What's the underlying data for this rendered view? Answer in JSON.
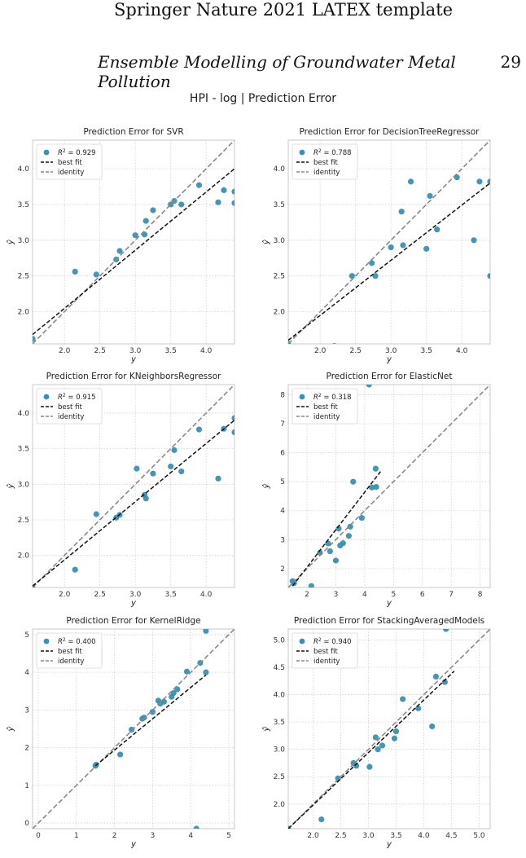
{
  "header": {
    "running_title": "Springer Nature 2021 LATEX template",
    "paper_title": "Ensemble Modelling of Groundwater Metal Pollution",
    "page_number": "29"
  },
  "figure": {
    "suptitle": "HPI - log | Prediction Error",
    "legend": {
      "best_fit": "best fit",
      "identity": "identity"
    },
    "xlabel": "y",
    "ylabel": "ŷ"
  },
  "colors": {
    "points": "#3c8fb0",
    "best_fit": "#111111",
    "identity": "#888888",
    "grid": "#cfcfcf"
  },
  "chart_data": [
    {
      "type": "scatter",
      "title": "Prediction Error for SVR",
      "r2": "0.929",
      "xlim": [
        1.55,
        4.4
      ],
      "ylim": [
        1.55,
        4.4
      ],
      "xticks": [
        2.0,
        2.5,
        3.0,
        3.5,
        4.0
      ],
      "yticks": [
        2.0,
        2.5,
        3.0,
        3.5,
        4.0
      ],
      "tick_decimals": 1,
      "best_fit": [
        [
          1.55,
          1.68
        ],
        [
          4.4,
          4.0
        ]
      ],
      "points": [
        [
          1.55,
          1.62
        ],
        [
          2.15,
          2.56
        ],
        [
          2.45,
          2.52
        ],
        [
          2.73,
          2.73
        ],
        [
          2.78,
          2.85
        ],
        [
          3.0,
          3.07
        ],
        [
          3.13,
          3.08
        ],
        [
          3.15,
          3.27
        ],
        [
          3.25,
          3.42
        ],
        [
          3.5,
          3.5
        ],
        [
          3.55,
          3.55
        ],
        [
          3.65,
          3.5
        ],
        [
          3.9,
          3.77
        ],
        [
          4.17,
          3.53
        ],
        [
          4.25,
          3.7
        ],
        [
          4.4,
          3.52
        ],
        [
          4.4,
          3.68
        ]
      ]
    },
    {
      "type": "scatter",
      "title": "Prediction Error for DecisionTreeRegressor",
      "r2": "0.788",
      "xlim": [
        1.55,
        4.4
      ],
      "ylim": [
        1.55,
        4.4
      ],
      "xticks": [
        2.0,
        2.5,
        3.0,
        3.5,
        4.0
      ],
      "yticks": [
        2.0,
        2.5,
        3.0,
        3.5,
        4.0
      ],
      "tick_decimals": 1,
      "best_fit": [
        [
          1.55,
          1.6
        ],
        [
          4.4,
          3.8
        ]
      ],
      "points": [
        [
          1.55,
          1.55
        ],
        [
          2.2,
          1.52
        ],
        [
          2.45,
          2.5
        ],
        [
          2.73,
          2.68
        ],
        [
          2.78,
          2.5
        ],
        [
          3.0,
          2.9
        ],
        [
          3.15,
          3.4
        ],
        [
          3.17,
          2.93
        ],
        [
          3.28,
          3.82
        ],
        [
          3.5,
          2.88
        ],
        [
          3.55,
          3.62
        ],
        [
          3.65,
          3.15
        ],
        [
          3.93,
          3.88
        ],
        [
          4.17,
          3.0
        ],
        [
          4.25,
          3.82
        ],
        [
          4.4,
          3.82
        ],
        [
          4.4,
          2.5
        ]
      ]
    },
    {
      "type": "scatter",
      "title": "Prediction Error for KNeighborsRegressor",
      "r2": "0.915",
      "xlim": [
        1.55,
        4.4
      ],
      "ylim": [
        1.55,
        4.4
      ],
      "xticks": [
        2.0,
        2.5,
        3.0,
        3.5,
        4.0
      ],
      "yticks": [
        2.0,
        2.5,
        3.0,
        3.5,
        4.0
      ],
      "tick_decimals": 1,
      "best_fit": [
        [
          1.55,
          1.57
        ],
        [
          4.4,
          3.9
        ]
      ],
      "points": [
        [
          1.55,
          1.55
        ],
        [
          2.15,
          1.8
        ],
        [
          2.45,
          2.58
        ],
        [
          2.73,
          2.53
        ],
        [
          2.78,
          2.57
        ],
        [
          3.02,
          3.22
        ],
        [
          3.13,
          2.85
        ],
        [
          3.15,
          2.8
        ],
        [
          3.25,
          3.15
        ],
        [
          3.5,
          3.25
        ],
        [
          3.55,
          3.48
        ],
        [
          3.65,
          3.18
        ],
        [
          3.9,
          3.77
        ],
        [
          4.17,
          3.08
        ],
        [
          4.25,
          3.78
        ],
        [
          4.4,
          3.73
        ],
        [
          4.4,
          3.93
        ]
      ]
    },
    {
      "type": "scatter",
      "title": "Prediction Error for ElasticNet",
      "r2": "0.318",
      "xlim": [
        1.35,
        8.35
      ],
      "ylim": [
        1.35,
        8.35
      ],
      "xticks": [
        2,
        3,
        4,
        5,
        6,
        7,
        8
      ],
      "yticks": [
        2,
        3,
        4,
        5,
        6,
        7,
        8
      ],
      "tick_decimals": 0,
      "best_fit": [
        [
          1.5,
          1.4
        ],
        [
          4.55,
          5.35
        ]
      ],
      "points": [
        [
          1.5,
          1.57
        ],
        [
          1.55,
          1.5
        ],
        [
          2.15,
          1.4
        ],
        [
          2.45,
          2.55
        ],
        [
          2.73,
          2.87
        ],
        [
          2.8,
          2.6
        ],
        [
          3.0,
          2.28
        ],
        [
          3.1,
          3.38
        ],
        [
          3.15,
          2.8
        ],
        [
          3.25,
          2.88
        ],
        [
          3.45,
          3.13
        ],
        [
          3.5,
          3.45
        ],
        [
          3.6,
          5.0
        ],
        [
          3.9,
          3.75
        ],
        [
          4.15,
          8.35
        ],
        [
          4.25,
          4.8
        ],
        [
          4.38,
          5.45
        ],
        [
          4.4,
          4.82
        ]
      ]
    },
    {
      "type": "scatter",
      "title": "Prediction Error for KernelRidge",
      "r2": "0.400",
      "xlim": [
        -0.15,
        5.15
      ],
      "ylim": [
        -0.15,
        5.15
      ],
      "xticks": [
        0,
        1,
        2,
        3,
        4,
        5
      ],
      "yticks": [
        0,
        1,
        2,
        3,
        4,
        5
      ],
      "tick_decimals": 0,
      "best_fit": [
        [
          1.5,
          1.52
        ],
        [
          4.4,
          3.93
        ]
      ],
      "points": [
        [
          1.5,
          1.52
        ],
        [
          1.52,
          1.55
        ],
        [
          2.15,
          1.82
        ],
        [
          2.45,
          2.48
        ],
        [
          2.73,
          2.77
        ],
        [
          2.78,
          2.8
        ],
        [
          3.0,
          2.95
        ],
        [
          3.15,
          3.25
        ],
        [
          3.2,
          3.17
        ],
        [
          3.3,
          3.22
        ],
        [
          3.5,
          3.35
        ],
        [
          3.55,
          3.45
        ],
        [
          3.65,
          3.55
        ],
        [
          3.9,
          4.02
        ],
        [
          4.15,
          -0.15
        ],
        [
          4.25,
          4.25
        ],
        [
          4.4,
          4.0
        ],
        [
          4.4,
          5.1
        ]
      ]
    },
    {
      "type": "scatter",
      "title": "Prediction Error for StackingAveragedModels",
      "r2": "0.940",
      "xlim": [
        1.55,
        5.2
      ],
      "ylim": [
        1.55,
        5.2
      ],
      "xticks": [
        2.0,
        2.5,
        3.0,
        3.5,
        4.0,
        4.5,
        5.0
      ],
      "yticks": [
        2.0,
        2.5,
        3.0,
        3.5,
        4.0,
        4.5,
        5.0
      ],
      "tick_decimals": 1,
      "best_fit": [
        [
          1.55,
          1.55
        ],
        [
          4.55,
          4.43
        ]
      ],
      "points": [
        [
          1.55,
          1.55
        ],
        [
          2.15,
          1.72
        ],
        [
          2.45,
          2.47
        ],
        [
          2.73,
          2.75
        ],
        [
          2.78,
          2.7
        ],
        [
          3.02,
          2.68
        ],
        [
          3.13,
          3.22
        ],
        [
          3.17,
          3.0
        ],
        [
          3.25,
          3.07
        ],
        [
          3.47,
          3.2
        ],
        [
          3.5,
          3.33
        ],
        [
          3.62,
          3.92
        ],
        [
          3.9,
          3.75
        ],
        [
          4.15,
          3.42
        ],
        [
          4.22,
          4.33
        ],
        [
          4.38,
          4.23
        ],
        [
          4.4,
          5.2
        ]
      ]
    }
  ]
}
